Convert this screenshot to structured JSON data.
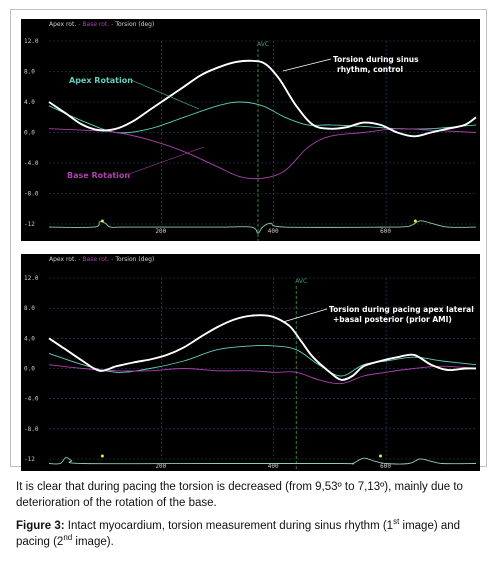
{
  "colors": {
    "background": "#000000",
    "torsion": "#ffffff",
    "apex": "#5fd0c0",
    "base": "#b040b0",
    "grid": "#2a4a7a",
    "avc": "#3fa060",
    "tick_label": "#d0d0d0",
    "ecg": "#8fd0a8",
    "ecg_marker": "#e8e840"
  },
  "chart_data": [
    {
      "type": "line",
      "header": {
        "apex": "Apex rot.",
        "base": "Base rot.",
        "torsion": "Torsion (deg)"
      },
      "x_ticks": [
        "200",
        "400",
        "600"
      ],
      "x_tick_values": [
        200,
        400,
        600
      ],
      "xlim": [
        0,
        760
      ],
      "y_ticks": [
        "12.0",
        "8.0",
        "4.0",
        "0.0",
        "-4.0",
        "-8.0",
        "-12"
      ],
      "ylim": [
        -12,
        12
      ],
      "avc": {
        "label": "AVC",
        "x": 372
      },
      "annotations": {
        "torsion": "Torsion during sinus rhythm, control",
        "apex": "Apex Rotation",
        "base": "Base Rotation"
      },
      "series": [
        {
          "key": "torsion",
          "x": [
            0,
            30,
            60,
            90,
            120,
            150,
            180,
            210,
            240,
            270,
            300,
            330,
            360,
            385,
            410,
            440,
            470,
            500,
            530,
            560,
            590,
            620,
            650,
            680,
            710,
            740,
            760
          ],
          "y": [
            4.0,
            2.5,
            1.0,
            0.3,
            0.5,
            1.5,
            3.0,
            4.5,
            6.0,
            7.5,
            8.5,
            9.2,
            9.4,
            9.0,
            7.0,
            3.5,
            1.0,
            0.5,
            0.7,
            1.3,
            1.0,
            0.0,
            -0.5,
            0.0,
            0.5,
            1.0,
            2.0
          ]
        },
        {
          "key": "apex",
          "x": [
            0,
            60,
            120,
            180,
            240,
            300,
            340,
            380,
            420,
            460,
            500,
            560,
            620,
            680,
            760
          ],
          "y": [
            3.5,
            1.5,
            0.0,
            0.5,
            2.0,
            3.5,
            4.0,
            3.5,
            2.0,
            1.0,
            1.0,
            0.8,
            0.5,
            0.5,
            1.0
          ]
        },
        {
          "key": "base",
          "x": [
            0,
            60,
            120,
            180,
            240,
            300,
            340,
            380,
            420,
            460,
            500,
            560,
            620,
            680,
            760
          ],
          "y": [
            0.5,
            0.3,
            0.0,
            -1.0,
            -2.5,
            -4.5,
            -5.8,
            -6.0,
            -5.0,
            -2.0,
            -0.5,
            0.0,
            0.5,
            0.3,
            0.0
          ]
        }
      ],
      "ecg": {
        "x": [
          0,
          80,
          90,
          100,
          110,
          140,
          300,
          360,
          372,
          380,
          395,
          420,
          600,
          640,
          660,
          680,
          710,
          760
        ],
        "y": [
          -12.4,
          -12.4,
          -11.7,
          -11.9,
          -12.4,
          -12.4,
          -12.4,
          -12.4,
          -13.2,
          -12.4,
          -11.9,
          -12.4,
          -12.4,
          -12.3,
          -11.6,
          -11.9,
          -12.4,
          -12.4
        ],
        "markers": [
          95,
          652
        ]
      }
    },
    {
      "type": "line",
      "header": {
        "apex": "Apex rot.",
        "base": "Base rot.",
        "torsion": "Torsion (deg)"
      },
      "x_ticks": [
        "200",
        "400",
        "600"
      ],
      "x_tick_values": [
        200,
        400,
        600
      ],
      "xlim": [
        0,
        760
      ],
      "y_ticks": [
        "12.0",
        "8.0",
        "4.0",
        "0.0",
        "-4.0",
        "-8.0",
        "-12"
      ],
      "ylim": [
        -12,
        12
      ],
      "avc": {
        "label": "AVC",
        "x": 440
      },
      "annotations": {
        "torsion": "Torsion during pacing apex lateral +basal posterior (prior AMI)"
      },
      "series": [
        {
          "key": "torsion",
          "x": [
            0,
            30,
            60,
            90,
            120,
            150,
            180,
            210,
            240,
            270,
            300,
            330,
            360,
            390,
            410,
            430,
            450,
            470,
            500,
            520,
            540,
            560,
            590,
            620,
            650,
            680,
            710,
            740,
            760
          ],
          "y": [
            4.0,
            2.5,
            1.0,
            -0.3,
            0.3,
            0.8,
            1.2,
            1.8,
            2.8,
            4.2,
            5.5,
            6.5,
            7.0,
            7.0,
            6.5,
            5.5,
            3.5,
            1.5,
            -0.5,
            -1.5,
            -1.0,
            0.3,
            1.0,
            1.5,
            1.8,
            0.5,
            -0.2,
            0.0,
            0.0
          ]
        },
        {
          "key": "apex",
          "x": [
            0,
            60,
            120,
            180,
            240,
            300,
            360,
            400,
            440,
            480,
            520,
            560,
            600,
            650,
            700,
            760
          ],
          "y": [
            2.0,
            0.5,
            -0.5,
            0.0,
            1.0,
            2.5,
            3.0,
            3.0,
            2.5,
            0.5,
            -1.0,
            0.5,
            1.0,
            1.5,
            1.0,
            0.5
          ]
        },
        {
          "key": "base",
          "x": [
            0,
            60,
            120,
            180,
            240,
            300,
            360,
            400,
            440,
            480,
            520,
            560,
            600,
            650,
            700,
            760
          ],
          "y": [
            0.5,
            0.0,
            -0.3,
            -0.3,
            0.0,
            -0.3,
            -0.3,
            -0.5,
            -0.5,
            -1.5,
            -2.0,
            -1.0,
            -0.5,
            0.0,
            0.3,
            0.0
          ]
        }
      ],
      "ecg": {
        "x": [
          0,
          20,
          30,
          40,
          60,
          300,
          520,
          540,
          560,
          580,
          600,
          640,
          660,
          680,
          700,
          760
        ],
        "y": [
          -12.6,
          -12.6,
          -11.8,
          -12.2,
          -12.6,
          -12.6,
          -12.6,
          -12.6,
          -11.9,
          -12.3,
          -12.6,
          -12.6,
          -12.0,
          -12.3,
          -12.6,
          -12.6
        ],
        "markers": [
          95,
          590
        ]
      }
    }
  ],
  "caption": {
    "text": "It is clear that during pacing the torsion is decreased (from 9,53º to 7,13º), mainly due to deterioration of the rotation of the base.",
    "figure_label": "Figure 3:",
    "figure_text_1": " Intact myocardium, torsion measurement during sinus rhythm (1",
    "sup_1": "st",
    "figure_text_2": " image) and pacing (2",
    "sup_2": "nd",
    "figure_text_3": " image)."
  }
}
